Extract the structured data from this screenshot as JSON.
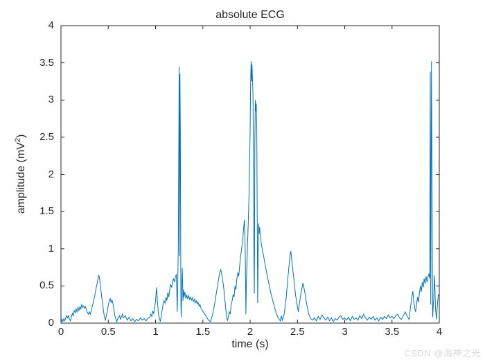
{
  "watermark": "CSDN @海神之光",
  "chart_data": {
    "type": "line",
    "title": "absolute ECG",
    "xlabel": "time (s)",
    "ylabel": {
      "pre": "amplitude (mV",
      "sup": "2",
      "post": ")"
    },
    "xlim": [
      0,
      4
    ],
    "ylim": [
      0,
      4
    ],
    "xticks": [
      0,
      0.5,
      1,
      1.5,
      2,
      2.5,
      3,
      3.5,
      4
    ],
    "xtick_labels": [
      "0",
      "0.5",
      "1",
      "1.5",
      "2",
      "2.5",
      "3",
      "3.5",
      "4"
    ],
    "yticks": [
      0,
      0.5,
      1,
      1.5,
      2,
      2.5,
      3,
      3.5,
      4
    ],
    "ytick_labels": [
      "0",
      "0.5",
      "1",
      "1.5",
      "2",
      "2.5",
      "3",
      "3.5",
      "4"
    ],
    "grid": false,
    "legend": null,
    "line_color": "#0072BD",
    "axis_color": "#262626",
    "points": [
      [
        0.0,
        0.02
      ],
      [
        0.01,
        0.05
      ],
      [
        0.02,
        0.02
      ],
      [
        0.03,
        0.06
      ],
      [
        0.04,
        0.03
      ],
      [
        0.05,
        0.07
      ],
      [
        0.06,
        0.1
      ],
      [
        0.07,
        0.07
      ],
      [
        0.08,
        0.1
      ],
      [
        0.09,
        0.05
      ],
      [
        0.1,
        0.03
      ],
      [
        0.11,
        0.08
      ],
      [
        0.12,
        0.13
      ],
      [
        0.13,
        0.1
      ],
      [
        0.14,
        0.17
      ],
      [
        0.15,
        0.14
      ],
      [
        0.16,
        0.19
      ],
      [
        0.17,
        0.15
      ],
      [
        0.18,
        0.21
      ],
      [
        0.19,
        0.17
      ],
      [
        0.2,
        0.22
      ],
      [
        0.21,
        0.19
      ],
      [
        0.22,
        0.25
      ],
      [
        0.23,
        0.21
      ],
      [
        0.24,
        0.23
      ],
      [
        0.25,
        0.2
      ],
      [
        0.26,
        0.22
      ],
      [
        0.27,
        0.17
      ],
      [
        0.28,
        0.14
      ],
      [
        0.29,
        0.12
      ],
      [
        0.3,
        0.15
      ],
      [
        0.31,
        0.12
      ],
      [
        0.32,
        0.17
      ],
      [
        0.33,
        0.22
      ],
      [
        0.34,
        0.27
      ],
      [
        0.35,
        0.33
      ],
      [
        0.36,
        0.38
      ],
      [
        0.37,
        0.46
      ],
      [
        0.38,
        0.52
      ],
      [
        0.39,
        0.58
      ],
      [
        0.4,
        0.65
      ],
      [
        0.41,
        0.58
      ],
      [
        0.42,
        0.47
      ],
      [
        0.43,
        0.36
      ],
      [
        0.44,
        0.26
      ],
      [
        0.45,
        0.16
      ],
      [
        0.46,
        0.08
      ],
      [
        0.47,
        0.04
      ],
      [
        0.48,
        0.1
      ],
      [
        0.49,
        0.16
      ],
      [
        0.5,
        0.24
      ],
      [
        0.51,
        0.3
      ],
      [
        0.52,
        0.33
      ],
      [
        0.53,
        0.28
      ],
      [
        0.54,
        0.31
      ],
      [
        0.55,
        0.26
      ],
      [
        0.56,
        0.18
      ],
      [
        0.57,
        0.1
      ],
      [
        0.58,
        0.05
      ],
      [
        0.59,
        0.02
      ],
      [
        0.6,
        0.06
      ],
      [
        0.62,
        0.1
      ],
      [
        0.63,
        0.05
      ],
      [
        0.65,
        0.12
      ],
      [
        0.66,
        0.07
      ],
      [
        0.68,
        0.1
      ],
      [
        0.7,
        0.04
      ],
      [
        0.72,
        0.08
      ],
      [
        0.74,
        0.03
      ],
      [
        0.76,
        0.06
      ],
      [
        0.78,
        0.02
      ],
      [
        0.8,
        0.05
      ],
      [
        0.82,
        0.03
      ],
      [
        0.84,
        0.07
      ],
      [
        0.86,
        0.04
      ],
      [
        0.88,
        0.06
      ],
      [
        0.9,
        0.03
      ],
      [
        0.92,
        0.07
      ],
      [
        0.94,
        0.08
      ],
      [
        0.95,
        0.12
      ],
      [
        0.96,
        0.09
      ],
      [
        0.97,
        0.16
      ],
      [
        0.98,
        0.13
      ],
      [
        0.99,
        0.2
      ],
      [
        1.0,
        0.3
      ],
      [
        1.01,
        0.48
      ],
      [
        1.02,
        0.3
      ],
      [
        1.03,
        0.12
      ],
      [
        1.04,
        0.07
      ],
      [
        1.05,
        0.02
      ],
      [
        1.06,
        0.1
      ],
      [
        1.07,
        0.18
      ],
      [
        1.08,
        0.25
      ],
      [
        1.09,
        0.3
      ],
      [
        1.1,
        0.27
      ],
      [
        1.11,
        0.35
      ],
      [
        1.12,
        0.3
      ],
      [
        1.13,
        0.41
      ],
      [
        1.14,
        0.35
      ],
      [
        1.15,
        0.45
      ],
      [
        1.16,
        0.52
      ],
      [
        1.17,
        0.48
      ],
      [
        1.18,
        0.55
      ],
      [
        1.19,
        0.6
      ],
      [
        1.2,
        0.55
      ],
      [
        1.21,
        0.63
      ],
      [
        1.22,
        0.65
      ],
      [
        1.23,
        0.15
      ],
      [
        1.24,
        1.0
      ],
      [
        1.25,
        3.45
      ],
      [
        1.253,
        0.9
      ],
      [
        1.258,
        3.35
      ],
      [
        1.262,
        2.6
      ],
      [
        1.268,
        0.25
      ],
      [
        1.272,
        0.08
      ],
      [
        1.278,
        0.5
      ],
      [
        1.283,
        0.74
      ],
      [
        1.29,
        0.3
      ],
      [
        1.295,
        0.45
      ],
      [
        1.3,
        0.35
      ],
      [
        1.31,
        0.42
      ],
      [
        1.32,
        0.33
      ],
      [
        1.33,
        0.38
      ],
      [
        1.34,
        0.33
      ],
      [
        1.35,
        0.37
      ],
      [
        1.36,
        0.32
      ],
      [
        1.37,
        0.35
      ],
      [
        1.38,
        0.31
      ],
      [
        1.39,
        0.34
      ],
      [
        1.4,
        0.29
      ],
      [
        1.41,
        0.32
      ],
      [
        1.42,
        0.27
      ],
      [
        1.43,
        0.3
      ],
      [
        1.44,
        0.26
      ],
      [
        1.45,
        0.28
      ],
      [
        1.46,
        0.23
      ],
      [
        1.47,
        0.25
      ],
      [
        1.48,
        0.2
      ],
      [
        1.5,
        0.16
      ],
      [
        1.52,
        0.12
      ],
      [
        1.54,
        0.08
      ],
      [
        1.56,
        0.04
      ],
      [
        1.58,
        0.02
      ],
      [
        1.6,
        0.1
      ],
      [
        1.62,
        0.22
      ],
      [
        1.64,
        0.38
      ],
      [
        1.66,
        0.54
      ],
      [
        1.67,
        0.62
      ],
      [
        1.68,
        0.68
      ],
      [
        1.69,
        0.72
      ],
      [
        1.7,
        0.66
      ],
      [
        1.71,
        0.58
      ],
      [
        1.72,
        0.48
      ],
      [
        1.73,
        0.36
      ],
      [
        1.74,
        0.22
      ],
      [
        1.75,
        0.1
      ],
      [
        1.76,
        0.03
      ],
      [
        1.77,
        0.08
      ],
      [
        1.78,
        0.15
      ],
      [
        1.79,
        0.12
      ],
      [
        1.8,
        0.25
      ],
      [
        1.81,
        0.3
      ],
      [
        1.82,
        0.38
      ],
      [
        1.83,
        0.35
      ],
      [
        1.84,
        0.5
      ],
      [
        1.85,
        0.45
      ],
      [
        1.86,
        0.6
      ],
      [
        1.87,
        0.68
      ],
      [
        1.88,
        0.63
      ],
      [
        1.89,
        0.78
      ],
      [
        1.9,
        0.9
      ],
      [
        1.91,
        1.0
      ],
      [
        1.92,
        1.1
      ],
      [
        1.93,
        1.25
      ],
      [
        1.94,
        1.39
      ],
      [
        1.945,
        1.2
      ],
      [
        1.95,
        0.8
      ],
      [
        1.955,
        0.12
      ],
      [
        1.96,
        0.5
      ],
      [
        1.97,
        0.95
      ],
      [
        1.98,
        1.35
      ],
      [
        1.99,
        1.78
      ],
      [
        2.0,
        2.6
      ],
      [
        2.005,
        3.2
      ],
      [
        2.01,
        3.52
      ],
      [
        2.015,
        3.25
      ],
      [
        2.02,
        3.48
      ],
      [
        2.03,
        3.1
      ],
      [
        2.035,
        2.2
      ],
      [
        2.04,
        0.9
      ],
      [
        2.045,
        0.4
      ],
      [
        2.05,
        2.4
      ],
      [
        2.055,
        3.0
      ],
      [
        2.06,
        2.85
      ],
      [
        2.065,
        2.95
      ],
      [
        2.07,
        2.6
      ],
      [
        2.075,
        1.5
      ],
      [
        2.08,
        0.27
      ],
      [
        2.085,
        0.9
      ],
      [
        2.09,
        1.34
      ],
      [
        2.095,
        1.2
      ],
      [
        2.1,
        1.29
      ],
      [
        2.11,
        1.15
      ],
      [
        2.12,
        1.05
      ],
      [
        2.14,
        0.92
      ],
      [
        2.16,
        0.78
      ],
      [
        2.18,
        0.64
      ],
      [
        2.2,
        0.52
      ],
      [
        2.22,
        0.4
      ],
      [
        2.24,
        0.3
      ],
      [
        2.26,
        0.2
      ],
      [
        2.28,
        0.12
      ],
      [
        2.3,
        0.06
      ],
      [
        2.32,
        0.03
      ],
      [
        2.33,
        0.1
      ],
      [
        2.34,
        0.04
      ],
      [
        2.36,
        0.12
      ],
      [
        2.38,
        0.32
      ],
      [
        2.4,
        0.62
      ],
      [
        2.42,
        0.88
      ],
      [
        2.43,
        0.97
      ],
      [
        2.44,
        0.85
      ],
      [
        2.46,
        0.62
      ],
      [
        2.48,
        0.38
      ],
      [
        2.5,
        0.22
      ],
      [
        2.51,
        0.15
      ],
      [
        2.52,
        0.25
      ],
      [
        2.54,
        0.42
      ],
      [
        2.56,
        0.54
      ],
      [
        2.58,
        0.4
      ],
      [
        2.6,
        0.24
      ],
      [
        2.62,
        0.12
      ],
      [
        2.64,
        0.06
      ],
      [
        2.66,
        0.04
      ],
      [
        2.68,
        0.07
      ],
      [
        2.7,
        0.03
      ],
      [
        2.72,
        0.09
      ],
      [
        2.74,
        0.05
      ],
      [
        2.76,
        0.11
      ],
      [
        2.78,
        0.07
      ],
      [
        2.8,
        0.04
      ],
      [
        2.82,
        0.08
      ],
      [
        2.84,
        0.03
      ],
      [
        2.86,
        0.07
      ],
      [
        2.88,
        0.02
      ],
      [
        2.9,
        0.06
      ],
      [
        2.92,
        0.04
      ],
      [
        2.94,
        0.08
      ],
      [
        2.96,
        0.1
      ],
      [
        2.98,
        0.05
      ],
      [
        3.0,
        0.07
      ],
      [
        3.02,
        0.04
      ],
      [
        3.04,
        0.08
      ],
      [
        3.06,
        0.03
      ],
      [
        3.08,
        0.09
      ],
      [
        3.1,
        0.05
      ],
      [
        3.12,
        0.07
      ],
      [
        3.14,
        0.04
      ],
      [
        3.16,
        0.1
      ],
      [
        3.18,
        0.06
      ],
      [
        3.2,
        0.12
      ],
      [
        3.22,
        0.07
      ],
      [
        3.24,
        0.04
      ],
      [
        3.26,
        0.08
      ],
      [
        3.28,
        0.05
      ],
      [
        3.3,
        0.09
      ],
      [
        3.32,
        0.04
      ],
      [
        3.34,
        0.07
      ],
      [
        3.36,
        0.03
      ],
      [
        3.38,
        0.08
      ],
      [
        3.4,
        0.05
      ],
      [
        3.42,
        0.09
      ],
      [
        3.44,
        0.06
      ],
      [
        3.46,
        0.11
      ],
      [
        3.48,
        0.07
      ],
      [
        3.5,
        0.09
      ],
      [
        3.52,
        0.06
      ],
      [
        3.54,
        0.1
      ],
      [
        3.56,
        0.12
      ],
      [
        3.58,
        0.07
      ],
      [
        3.6,
        0.05
      ],
      [
        3.62,
        0.1
      ],
      [
        3.64,
        0.15
      ],
      [
        3.65,
        0.12
      ],
      [
        3.66,
        0.09
      ],
      [
        3.68,
        0.05
      ],
      [
        3.7,
        0.25
      ],
      [
        3.71,
        0.35
      ],
      [
        3.72,
        0.43
      ],
      [
        3.73,
        0.3
      ],
      [
        3.74,
        0.2
      ],
      [
        3.75,
        0.15
      ],
      [
        3.76,
        0.25
      ],
      [
        3.77,
        0.35
      ],
      [
        3.78,
        0.28
      ],
      [
        3.79,
        0.4
      ],
      [
        3.8,
        0.5
      ],
      [
        3.81,
        0.42
      ],
      [
        3.82,
        0.55
      ],
      [
        3.83,
        0.48
      ],
      [
        3.84,
        0.6
      ],
      [
        3.85,
        0.53
      ],
      [
        3.86,
        0.63
      ],
      [
        3.87,
        0.55
      ],
      [
        3.88,
        0.62
      ],
      [
        3.89,
        0.66
      ],
      [
        3.9,
        0.6
      ],
      [
        3.905,
        3.38
      ],
      [
        3.91,
        0.25
      ],
      [
        3.917,
        3.52
      ],
      [
        3.924,
        1.8
      ],
      [
        3.93,
        0.08
      ],
      [
        3.94,
        0.3
      ],
      [
        3.95,
        0.64
      ],
      [
        3.96,
        0.2
      ],
      [
        3.97,
        0.05
      ],
      [
        3.98,
        0.25
      ],
      [
        3.99,
        0.38
      ],
      [
        4.0,
        0.37
      ]
    ]
  }
}
